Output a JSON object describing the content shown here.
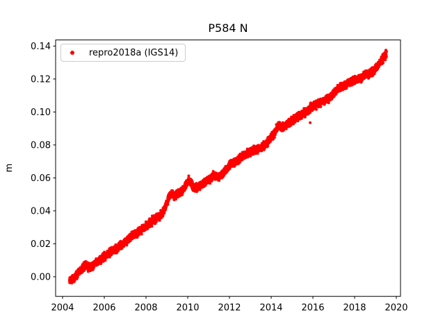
{
  "figure": {
    "background": "#ffffff",
    "frame_color": "#000000",
    "text_color": "#000000"
  },
  "chart_data": {
    "type": "scatter",
    "title": "P584 N",
    "xlabel": "",
    "ylabel": "m",
    "grid": false,
    "legend": {
      "position": "upper left",
      "entries": [
        {
          "label": "repro2018a (IGS14)",
          "marker": "point",
          "color": "#ff0000"
        }
      ]
    },
    "xlim": [
      2003.667,
      2020.2
    ],
    "ylim": [
      -0.0119,
      0.1437
    ],
    "xticks": [
      2004,
      2006,
      2008,
      2010,
      2012,
      2014,
      2016,
      2018,
      2020
    ],
    "yticks": [
      0.0,
      0.02,
      0.04,
      0.06,
      0.08,
      0.1,
      0.12,
      0.14
    ],
    "ytick_decimals": 2,
    "series": [
      {
        "name": "repro2018a (IGS14)",
        "color": "#ff0000",
        "marker_diameter_px": 4,
        "t_start": 2004.33,
        "t_end": 2019.53,
        "samples_per_year": 365,
        "noise_sigma_m": 0.0011,
        "trend_anchors": [
          [
            2004.33,
            -0.0022
          ],
          [
            2004.55,
            -0.0008
          ],
          [
            2004.7,
            0.0012
          ],
          [
            2004.85,
            0.004
          ],
          [
            2005.0,
            0.006
          ],
          [
            2005.15,
            0.0068
          ],
          [
            2005.35,
            0.0055
          ],
          [
            2005.55,
            0.0078
          ],
          [
            2005.75,
            0.0098
          ],
          [
            2005.95,
            0.0118
          ],
          [
            2006.15,
            0.0135
          ],
          [
            2006.35,
            0.0155
          ],
          [
            2006.55,
            0.0165
          ],
          [
            2006.75,
            0.019
          ],
          [
            2006.95,
            0.0205
          ],
          [
            2007.15,
            0.0228
          ],
          [
            2007.35,
            0.0248
          ],
          [
            2007.55,
            0.0262
          ],
          [
            2007.75,
            0.0285
          ],
          [
            2007.95,
            0.0302
          ],
          [
            2008.15,
            0.032
          ],
          [
            2008.35,
            0.0345
          ],
          [
            2008.55,
            0.036
          ],
          [
            2008.75,
            0.0378
          ],
          [
            2008.9,
            0.041
          ],
          [
            2009.0,
            0.0445
          ],
          [
            2009.07,
            0.048
          ],
          [
            2009.2,
            0.0502
          ],
          [
            2009.35,
            0.049
          ],
          [
            2009.5,
            0.0505
          ],
          [
            2009.65,
            0.0512
          ],
          [
            2009.8,
            0.053
          ],
          [
            2009.95,
            0.057
          ],
          [
            2010.05,
            0.0588
          ],
          [
            2010.2,
            0.056
          ],
          [
            2010.35,
            0.0535
          ],
          [
            2010.5,
            0.0542
          ],
          [
            2010.65,
            0.0558
          ],
          [
            2010.8,
            0.0572
          ],
          [
            2010.95,
            0.0588
          ],
          [
            2011.1,
            0.0595
          ],
          [
            2011.25,
            0.0618
          ],
          [
            2011.4,
            0.0608
          ],
          [
            2011.55,
            0.0612
          ],
          [
            2011.7,
            0.0628
          ],
          [
            2011.85,
            0.0652
          ],
          [
            2012.0,
            0.0678
          ],
          [
            2012.2,
            0.0692
          ],
          [
            2012.4,
            0.0705
          ],
          [
            2012.6,
            0.0728
          ],
          [
            2012.8,
            0.0742
          ],
          [
            2013.0,
            0.0758
          ],
          [
            2013.2,
            0.0768
          ],
          [
            2013.4,
            0.0775
          ],
          [
            2013.6,
            0.0788
          ],
          [
            2013.8,
            0.0812
          ],
          [
            2014.0,
            0.0848
          ],
          [
            2014.2,
            0.088
          ],
          [
            2014.35,
            0.0925
          ],
          [
            2014.5,
            0.0905
          ],
          [
            2014.65,
            0.0915
          ],
          [
            2014.8,
            0.0928
          ],
          [
            2015.0,
            0.0945
          ],
          [
            2015.2,
            0.0962
          ],
          [
            2015.35,
            0.0975
          ],
          [
            2015.5,
            0.0988
          ],
          [
            2015.65,
            0.1
          ],
          [
            2015.8,
            0.1012
          ],
          [
            2015.95,
            0.103
          ],
          [
            2016.1,
            0.1042
          ],
          [
            2016.3,
            0.1052
          ],
          [
            2016.5,
            0.1068
          ],
          [
            2016.7,
            0.108
          ],
          [
            2016.9,
            0.1098
          ],
          [
            2017.1,
            0.1122
          ],
          [
            2017.3,
            0.1148
          ],
          [
            2017.5,
            0.116
          ],
          [
            2017.7,
            0.1172
          ],
          [
            2017.9,
            0.1188
          ],
          [
            2018.1,
            0.1198
          ],
          [
            2018.3,
            0.1208
          ],
          [
            2018.5,
            0.1225
          ],
          [
            2018.7,
            0.1232
          ],
          [
            2018.9,
            0.1248
          ],
          [
            2019.05,
            0.127
          ],
          [
            2019.2,
            0.1295
          ],
          [
            2019.35,
            0.1322
          ],
          [
            2019.45,
            0.134
          ],
          [
            2019.53,
            0.1352
          ]
        ],
        "outliers": [
          [
            2015.87,
            0.0935
          ]
        ]
      }
    ]
  }
}
